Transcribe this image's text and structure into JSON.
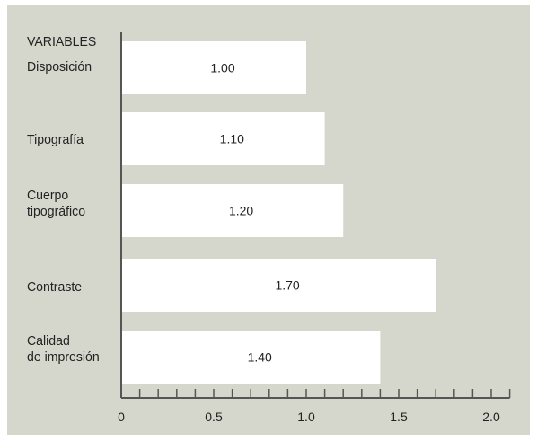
{
  "chart_data": {
    "type": "bar",
    "orientation": "horizontal",
    "header": "VARIABLES",
    "categories": [
      "Disposición",
      "Tipografía",
      "Cuerpo\ntipográfico",
      "Contraste",
      "Calidad\nde impresión"
    ],
    "values": [
      1.0,
      1.1,
      1.2,
      1.7,
      1.4
    ],
    "value_labels": [
      "1.00",
      "1.10",
      "1.20",
      "1.70",
      "1.40"
    ],
    "xlim": [
      0,
      2.1
    ],
    "xticks": [
      0,
      0.5,
      1.0,
      1.5,
      2.0
    ],
    "xtick_labels": [
      "0",
      "0.5",
      "1.0",
      "1.5",
      "2.0"
    ],
    "minor_tick_step": 0.1,
    "grid": false,
    "legend": "none",
    "colors": {
      "background": "#d6d7cc",
      "bar": "#ffffff",
      "axis": "#555555",
      "text": "#222222"
    }
  }
}
